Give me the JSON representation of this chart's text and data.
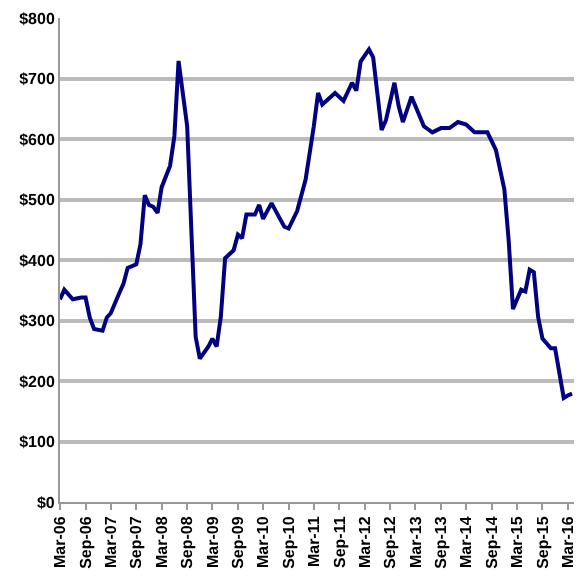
{
  "chart_data": {
    "type": "line",
    "x": [
      "2006-03",
      "2006-04",
      "2006-06",
      "2006-08",
      "2006-09",
      "2006-10",
      "2006-11",
      "2007-01",
      "2007-02",
      "2007-03",
      "2007-05",
      "2007-06",
      "2007-07",
      "2007-09",
      "2007-10",
      "2007-11",
      "2007-12",
      "2008-01",
      "2008-02",
      "2008-03",
      "2008-05",
      "2008-06",
      "2008-07",
      "2008-09",
      "2008-11",
      "2008-12",
      "2009-02",
      "2009-03",
      "2009-04",
      "2009-05",
      "2009-06",
      "2009-08",
      "2009-09",
      "2009-10",
      "2009-11",
      "2010-01",
      "2010-02",
      "2010-03",
      "2010-05",
      "2010-07",
      "2010-08",
      "2010-09",
      "2010-11",
      "2011-01",
      "2011-03",
      "2011-04",
      "2011-05",
      "2011-08",
      "2011-10",
      "2011-12",
      "2012-01",
      "2012-02",
      "2012-04",
      "2012-05",
      "2012-07",
      "2012-08",
      "2012-10",
      "2012-11",
      "2012-12",
      "2013-02",
      "2013-05",
      "2013-07",
      "2013-09",
      "2013-11",
      "2014-01",
      "2014-03",
      "2014-05",
      "2014-08",
      "2014-10",
      "2014-12",
      "2015-01",
      "2015-02",
      "2015-04",
      "2015-05",
      "2015-06",
      "2015-07",
      "2015-08",
      "2015-09",
      "2015-11",
      "2015-12",
      "2016-02",
      "2016-03",
      "2016-04"
    ],
    "series": [
      {
        "color": "#000080",
        "values": [
          335,
          351,
          335,
          338,
          338,
          305,
          286,
          283,
          305,
          312,
          345,
          361,
          387,
          393,
          426,
          507,
          491,
          488,
          478,
          520,
          556,
          605,
          729,
          621,
          273,
          237,
          257,
          270,
          257,
          306,
          403,
          416,
          442,
          436,
          475,
          475,
          491,
          468,
          494,
          468,
          455,
          452,
          481,
          533,
          621,
          676,
          657,
          676,
          663,
          693,
          680,
          728,
          748,
          735,
          615,
          631,
          693,
          654,
          628,
          670,
          621,
          611,
          618,
          618,
          628,
          624,
          611,
          611,
          582,
          517,
          432,
          319,
          351,
          348,
          384,
          380,
          306,
          270,
          254,
          254,
          172,
          176,
          179
        ]
      }
    ],
    "xlim": [
      "2006-03-01",
      "2016-04-15"
    ],
    "xticks": [
      {
        "value": "2006-03",
        "label": "Mar-06"
      },
      {
        "value": "2006-09",
        "label": "Sep-06"
      },
      {
        "value": "2007-03",
        "label": "Mar-07"
      },
      {
        "value": "2007-09",
        "label": "Sep-07"
      },
      {
        "value": "2008-03",
        "label": "Mar-08"
      },
      {
        "value": "2008-09",
        "label": "Sep-08"
      },
      {
        "value": "2009-03",
        "label": "Mar-09"
      },
      {
        "value": "2009-09",
        "label": "Sep-09"
      },
      {
        "value": "2010-03",
        "label": "Mar-10"
      },
      {
        "value": "2010-09",
        "label": "Sep-10"
      },
      {
        "value": "2011-03",
        "label": "Mar-11"
      },
      {
        "value": "2011-09",
        "label": "Sep-11"
      },
      {
        "value": "2012-03",
        "label": "Mar-12"
      },
      {
        "value": "2012-09",
        "label": "Sep-12"
      },
      {
        "value": "2013-03",
        "label": "Mar-13"
      },
      {
        "value": "2013-09",
        "label": "Sep-13"
      },
      {
        "value": "2014-03",
        "label": "Mar-14"
      },
      {
        "value": "2014-09",
        "label": "Sep-14"
      },
      {
        "value": "2015-03",
        "label": "Mar-15"
      },
      {
        "value": "2015-09",
        "label": "Sep-15"
      },
      {
        "value": "2016-03",
        "label": "Mar-16"
      }
    ],
    "ylim": [
      0,
      800
    ],
    "yticks": [
      {
        "value": 0,
        "label": "$0"
      },
      {
        "value": 100,
        "label": "$100"
      },
      {
        "value": 200,
        "label": "$200"
      },
      {
        "value": 300,
        "label": "$300"
      },
      {
        "value": 400,
        "label": "$400"
      },
      {
        "value": 500,
        "label": "$500"
      },
      {
        "value": 600,
        "label": "$600"
      },
      {
        "value": 700,
        "label": "$700"
      },
      {
        "value": 800,
        "label": "$800"
      }
    ],
    "grid": "y",
    "marker": "none",
    "line_style": "solid"
  }
}
